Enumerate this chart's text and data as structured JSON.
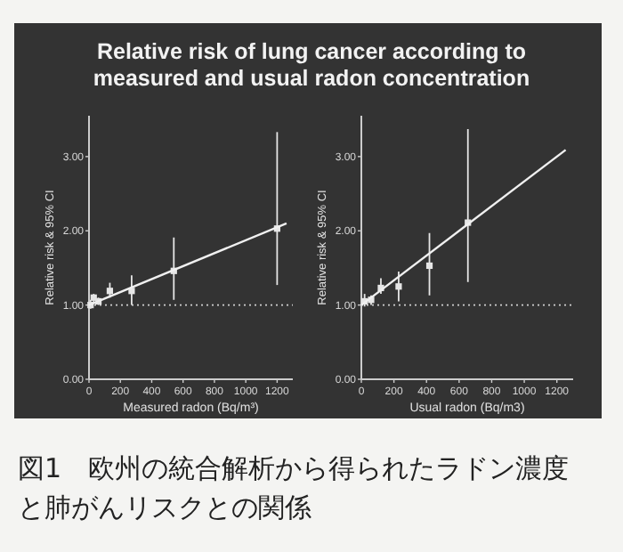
{
  "chart_data": [
    {
      "type": "scatter",
      "title": "Relative risk of lung cancer according to measured and usual radon concentration",
      "annotations": [
        "図1　欧州の統合解析から得られたラドン濃度と肺がんリスクとの関係"
      ],
      "xlabel": "Measured radon (Bq/m³)",
      "ylabel": "Relative risk & 95% CI",
      "xlim": [
        0,
        1300
      ],
      "ylim": [
        0,
        3.55
      ],
      "xticks": [
        0,
        200,
        400,
        600,
        800,
        1000,
        1200
      ],
      "yticks": [
        {
          "value": 0,
          "label": "0.00"
        },
        {
          "value": 1,
          "label": "1.00"
        },
        {
          "value": 2,
          "label": "2.00"
        },
        {
          "value": 3,
          "label": "3.00"
        }
      ],
      "marker": "square",
      "grid": false,
      "series": [
        {
          "color": "#e6e6e6",
          "x": [
            10,
            30,
            60,
            133,
            272,
            541,
            1200
          ],
          "values": [
            1.0,
            1.1,
            1.05,
            1.19,
            1.19,
            1.46,
            2.03
          ],
          "errors": [
            [
              0.95,
              1.07
            ],
            [
              1.02,
              1.15
            ],
            [
              1.0,
              1.1
            ],
            [
              1.1,
              1.3
            ],
            [
              1.0,
              1.4
            ],
            [
              1.07,
              1.91
            ],
            [
              1.27,
              3.33
            ]
          ]
        },
        {
          "type": "line",
          "marker": "none",
          "color": "#f0f0f0",
          "x": [
            0,
            1260
          ],
          "values": [
            1.0,
            2.1
          ]
        }
      ],
      "ref_lines": [
        {
          "axis": "y",
          "value": 1,
          "line_style": "dotted",
          "color": "#d0d0d0"
        }
      ]
    },
    {
      "type": "scatter",
      "xlabel": "Usual radon (Bq/m3)",
      "ylabel": "Relative risk & 95% CI",
      "xlim": [
        0,
        1300
      ],
      "ylim": [
        0,
        3.55
      ],
      "xticks": [
        0,
        200,
        400,
        600,
        800,
        1000,
        1200
      ],
      "yticks": [
        {
          "value": 0,
          "label": "0.00"
        },
        {
          "value": 1,
          "label": "1.00"
        },
        {
          "value": 2,
          "label": "2.00"
        },
        {
          "value": 3,
          "label": "3.00"
        }
      ],
      "marker": "square",
      "grid": false,
      "series": [
        {
          "color": "#e6e6e6",
          "x": [
            20,
            60,
            120,
            229,
            418,
            654
          ],
          "values": [
            1.05,
            1.07,
            1.23,
            1.25,
            1.53,
            2.11
          ],
          "errors": [
            [
              0.98,
              1.15
            ],
            [
              1.0,
              1.13
            ],
            [
              1.15,
              1.36
            ],
            [
              1.05,
              1.45
            ],
            [
              1.13,
              1.97
            ],
            [
              1.31,
              3.37
            ]
          ]
        },
        {
          "type": "line",
          "marker": "none",
          "color": "#f0f0f0",
          "x": [
            0,
            1254
          ],
          "values": [
            1.0,
            3.09
          ]
        }
      ],
      "ref_lines": [
        {
          "axis": "y",
          "value": 1,
          "line_style": "dotted",
          "color": "#d0d0d0"
        }
      ]
    }
  ]
}
